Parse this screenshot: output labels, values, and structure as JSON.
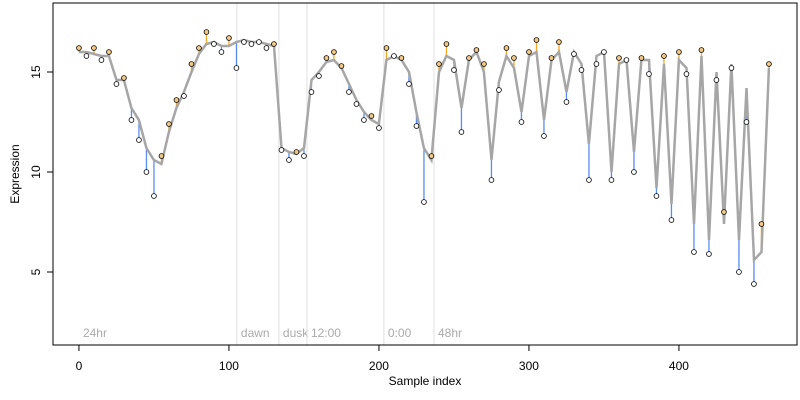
{
  "chart_data": {
    "type": "residual-line",
    "x_label": "Sample index",
    "y_label": "Expression",
    "xlim": [
      -17.3,
      478.7
    ],
    "ylim": [
      1.35,
      18.45
    ],
    "xticks": [
      0,
      100,
      200,
      300,
      400
    ],
    "yticks": [
      5,
      10,
      15
    ],
    "fit_color": "#a6a6a6",
    "above_color": "#f5a623",
    "below_color": "#5b8def",
    "point_color": "#f3c987",
    "annotations": [
      {
        "x": 0,
        "text": "24hr",
        "vline": false
      },
      {
        "x": 105.3,
        "text": "dawn",
        "vline": true
      },
      {
        "x": 133.3,
        "text": "dusk",
        "vline": true
      },
      {
        "x": 152,
        "text": "12:00",
        "vline": true
      },
      {
        "x": 203.3,
        "text": "0:00",
        "vline": true
      },
      {
        "x": 236.7,
        "text": "48hr",
        "vline": true
      }
    ],
    "x": [
      0,
      5,
      10,
      15,
      20,
      25,
      30,
      35,
      40,
      45,
      50,
      55,
      60,
      65,
      70,
      75,
      80,
      85,
      90,
      95,
      100,
      105,
      110,
      115,
      120,
      125,
      130,
      135,
      140,
      145,
      150,
      155,
      160,
      165,
      170,
      175,
      180,
      185,
      190,
      195,
      200,
      205,
      210,
      215,
      220,
      225,
      230,
      235,
      240,
      245,
      250,
      255,
      260,
      265,
      270,
      275,
      280,
      285,
      290,
      295,
      300,
      305,
      310,
      315,
      320,
      325,
      330,
      335,
      340,
      345,
      350,
      355,
      360,
      365,
      370,
      375,
      380,
      385,
      390,
      395,
      400,
      405,
      410,
      415,
      420,
      425,
      430,
      435,
      440,
      445,
      450,
      455,
      460
    ],
    "series": [
      {
        "values": [
          16.0,
          16.0,
          15.9,
          15.8,
          15.8,
          14.6,
          14.6,
          13.2,
          12.6,
          11.2,
          10.6,
          10.4,
          12.0,
          13.2,
          14.0,
          15.0,
          15.9,
          16.4,
          16.5,
          16.3,
          16.3,
          16.5,
          16.6,
          16.5,
          16.5,
          16.4,
          16.3,
          11.2,
          11.0,
          10.9,
          11.2,
          14.6,
          15.0,
          15.5,
          15.6,
          15.2,
          14.4,
          13.6,
          13.0,
          12.6,
          12.4,
          15.6,
          15.8,
          15.6,
          15.0,
          13.0,
          11.2,
          10.6,
          15.0,
          15.8,
          15.6,
          13.2,
          15.6,
          16.0,
          15.0,
          10.6,
          14.5,
          15.8,
          15.2,
          13.0,
          15.8,
          16.0,
          12.6,
          15.6,
          16.0,
          14.0,
          16.0,
          15.4,
          11.4,
          15.8,
          16.0,
          10.0,
          15.4,
          15.6,
          11.0,
          15.6,
          15.6,
          9.2,
          15.4,
          8.4,
          15.6,
          15.2,
          7.4,
          15.8,
          6.6,
          15.0,
          7.4,
          15.4,
          6.6,
          14.2,
          5.6,
          6.0,
          15.2
        ]
      },
      {
        "values": [
          16.2,
          15.8,
          16.2,
          15.6,
          16.0,
          14.4,
          14.7,
          12.6,
          11.6,
          10.0,
          8.8,
          10.8,
          12.4,
          13.6,
          13.8,
          15.4,
          16.2,
          17.0,
          16.4,
          16.0,
          16.7,
          15.2,
          16.5,
          16.4,
          16.5,
          16.2,
          16.4,
          11.1,
          10.6,
          11.0,
          10.8,
          14.0,
          14.8,
          15.7,
          16.0,
          15.3,
          14.0,
          13.4,
          12.6,
          12.8,
          12.2,
          16.2,
          15.8,
          15.7,
          14.4,
          12.3,
          8.5,
          10.8,
          15.4,
          16.4,
          15.1,
          12.0,
          15.7,
          16.1,
          15.4,
          9.6,
          14.1,
          16.2,
          15.7,
          12.5,
          16.0,
          16.6,
          11.8,
          15.7,
          16.5,
          13.5,
          15.9,
          15.1,
          9.6,
          15.4,
          16.0,
          9.6,
          15.7,
          15.6,
          10.0,
          15.7,
          14.9,
          8.8,
          15.8,
          7.6,
          16.0,
          14.9,
          6.0,
          16.1,
          5.9,
          14.6,
          8.0,
          15.2,
          5.0,
          12.5,
          4.4,
          7.4,
          15.4
        ]
      }
    ]
  }
}
